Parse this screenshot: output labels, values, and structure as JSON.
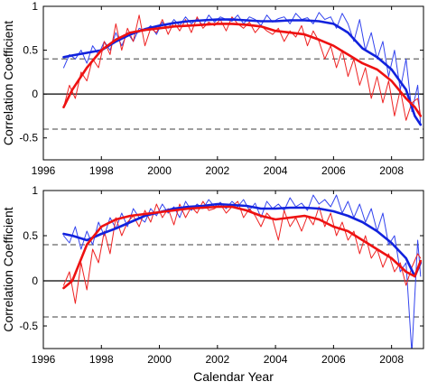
{
  "chart_data": [
    {
      "type": "line",
      "xlabel": "",
      "ylabel": "Correlation Coefficient",
      "xlim": [
        1996,
        2009.1
      ],
      "ylim": [
        -0.75,
        1.0
      ],
      "xticks": [
        1996,
        1998,
        2000,
        2002,
        2004,
        2006,
        2008
      ],
      "yticks": [
        -0.5,
        0,
        0.5,
        1
      ],
      "ytick_labels": [
        "-0.5",
        "0",
        "0.5",
        "1"
      ],
      "reference_lines": [
        {
          "y": 0.4,
          "style": "dashed",
          "color": "#666666"
        },
        {
          "y": 0,
          "style": "solid",
          "color": "#000000"
        },
        {
          "y": -0.4,
          "style": "dashed",
          "color": "#666666"
        }
      ],
      "series": [
        {
          "color": "#3344ee",
          "width": 1,
          "x": [
            1996.7,
            1996.9,
            1997.1,
            1997.3,
            1997.5,
            1997.7,
            1997.9,
            1998.1,
            1998.3,
            1998.5,
            1998.7,
            1998.9,
            1999.1,
            1999.3,
            1999.5,
            1999.7,
            1999.9,
            2000.1,
            2000.3,
            2000.5,
            2000.7,
            2000.9,
            2001.1,
            2001.3,
            2001.5,
            2001.7,
            2001.9,
            2002.1,
            2002.3,
            2002.5,
            2002.7,
            2002.9,
            2003.1,
            2003.3,
            2003.5,
            2003.7,
            2003.9,
            2004.1,
            2004.3,
            2004.5,
            2004.7,
            2004.9,
            2005.1,
            2005.3,
            2005.5,
            2005.7,
            2005.9,
            2006.1,
            2006.3,
            2006.5,
            2006.7,
            2006.9,
            2007.1,
            2007.3,
            2007.5,
            2007.7,
            2007.9,
            2008.1,
            2008.3,
            2008.5,
            2008.7,
            2008.9,
            2009.0
          ],
          "y": [
            0.3,
            0.45,
            0.4,
            0.5,
            0.35,
            0.55,
            0.45,
            0.6,
            0.5,
            0.7,
            0.55,
            0.7,
            0.6,
            0.75,
            0.72,
            0.78,
            0.68,
            0.82,
            0.75,
            0.85,
            0.78,
            0.88,
            0.8,
            0.86,
            0.78,
            0.9,
            0.82,
            0.88,
            0.85,
            0.83,
            0.9,
            0.8,
            0.88,
            0.85,
            0.78,
            0.9,
            0.82,
            0.86,
            0.88,
            0.8,
            0.92,
            0.85,
            0.87,
            0.8,
            0.93,
            0.85,
            0.88,
            0.75,
            0.92,
            0.8,
            0.6,
            0.85,
            0.5,
            0.7,
            0.4,
            0.6,
            0.2,
            0.5,
            0.05,
            0.4,
            -0.2,
            0.1,
            -0.35
          ]
        },
        {
          "color": "#ee2222",
          "width": 1,
          "x": [
            1996.7,
            1996.9,
            1997.1,
            1997.3,
            1997.5,
            1997.7,
            1997.9,
            1998.1,
            1998.3,
            1998.5,
            1998.7,
            1998.9,
            1999.1,
            1999.3,
            1999.5,
            1999.7,
            1999.9,
            2000.1,
            2000.3,
            2000.5,
            2000.7,
            2000.9,
            2001.1,
            2001.3,
            2001.5,
            2001.7,
            2001.9,
            2002.1,
            2002.3,
            2002.5,
            2002.7,
            2002.9,
            2003.1,
            2003.3,
            2003.5,
            2003.7,
            2003.9,
            2004.1,
            2004.3,
            2004.5,
            2004.7,
            2004.9,
            2005.1,
            2005.3,
            2005.5,
            2005.7,
            2005.9,
            2006.1,
            2006.3,
            2006.5,
            2006.7,
            2006.9,
            2007.1,
            2007.3,
            2007.5,
            2007.7,
            2007.9,
            2008.1,
            2008.3,
            2008.5,
            2008.7,
            2008.9,
            2009.0
          ],
          "y": [
            -0.15,
            0.1,
            -0.05,
            0.25,
            0.15,
            0.4,
            0.3,
            0.6,
            0.45,
            0.8,
            0.5,
            0.75,
            0.6,
            0.9,
            0.55,
            0.75,
            0.7,
            0.85,
            0.68,
            0.82,
            0.72,
            0.85,
            0.7,
            0.88,
            0.75,
            0.82,
            0.78,
            0.85,
            0.72,
            0.88,
            0.8,
            0.75,
            0.82,
            0.7,
            0.78,
            0.72,
            0.68,
            0.75,
            0.6,
            0.72,
            0.65,
            0.78,
            0.55,
            0.72,
            0.6,
            0.4,
            0.55,
            0.3,
            0.5,
            0.2,
            0.4,
            0.1,
            0.3,
            -0.05,
            0.2,
            -0.1,
            0.15,
            -0.25,
            0.05,
            -0.3,
            -0.1,
            -0.05,
            -0.25
          ]
        },
        {
          "color": "#1122dd",
          "width": 2.6,
          "x": [
            1996.7,
            1997.0,
            1997.5,
            1998.0,
            1998.5,
            1999.0,
            1999.5,
            2000.0,
            2000.5,
            2001.0,
            2001.5,
            2002.0,
            2002.5,
            2003.0,
            2003.5,
            2004.0,
            2004.5,
            2005.0,
            2005.5,
            2006.0,
            2006.5,
            2007.0,
            2007.5,
            2008.0,
            2008.5,
            2008.8,
            2009.0
          ],
          "y": [
            0.42,
            0.44,
            0.47,
            0.5,
            0.6,
            0.68,
            0.74,
            0.78,
            0.81,
            0.83,
            0.84,
            0.85,
            0.85,
            0.84,
            0.83,
            0.83,
            0.84,
            0.84,
            0.83,
            0.8,
            0.7,
            0.52,
            0.42,
            0.28,
            0.05,
            -0.25,
            -0.35
          ]
        },
        {
          "color": "#ee1111",
          "width": 2.6,
          "x": [
            1996.7,
            1997.0,
            1997.5,
            1998.0,
            1998.5,
            1999.0,
            1999.5,
            2000.0,
            2000.5,
            2001.0,
            2001.5,
            2002.0,
            2002.5,
            2003.0,
            2003.5,
            2004.0,
            2004.5,
            2005.0,
            2005.5,
            2006.0,
            2006.5,
            2007.0,
            2007.5,
            2008.0,
            2008.5,
            2008.8,
            2009.0
          ],
          "y": [
            -0.15,
            0.05,
            0.3,
            0.5,
            0.62,
            0.7,
            0.73,
            0.75,
            0.77,
            0.78,
            0.79,
            0.8,
            0.8,
            0.79,
            0.77,
            0.72,
            0.7,
            0.68,
            0.62,
            0.55,
            0.45,
            0.35,
            0.28,
            0.15,
            -0.05,
            -0.15,
            -0.25
          ]
        }
      ]
    },
    {
      "type": "line",
      "xlabel": "Calendar Year",
      "ylabel": "Correlation Coefficient",
      "xlim": [
        1996,
        2009.1
      ],
      "ylim": [
        -0.75,
        1.0
      ],
      "xticks": [
        1996,
        1998,
        2000,
        2002,
        2004,
        2006,
        2008
      ],
      "yticks": [
        -0.5,
        0,
        0.5,
        1
      ],
      "ytick_labels": [
        "-0.5",
        "0",
        "0.5",
        "1"
      ],
      "reference_lines": [
        {
          "y": 0.4,
          "style": "dashed",
          "color": "#666666"
        },
        {
          "y": 0,
          "style": "solid",
          "color": "#000000"
        },
        {
          "y": -0.4,
          "style": "dashed",
          "color": "#666666"
        }
      ],
      "series": [
        {
          "color": "#3344ee",
          "width": 1,
          "x": [
            1996.7,
            1996.9,
            1997.1,
            1997.3,
            1997.5,
            1997.7,
            1997.9,
            1998.1,
            1998.3,
            1998.5,
            1998.7,
            1998.9,
            1999.1,
            1999.3,
            1999.5,
            1999.7,
            1999.9,
            2000.1,
            2000.3,
            2000.5,
            2000.7,
            2000.9,
            2001.1,
            2001.3,
            2001.5,
            2001.7,
            2001.9,
            2002.1,
            2002.3,
            2002.5,
            2002.7,
            2002.9,
            2003.1,
            2003.3,
            2003.5,
            2003.7,
            2003.9,
            2004.1,
            2004.3,
            2004.5,
            2004.7,
            2004.9,
            2005.1,
            2005.3,
            2005.5,
            2005.7,
            2005.9,
            2006.1,
            2006.3,
            2006.5,
            2006.7,
            2006.9,
            2007.1,
            2007.3,
            2007.5,
            2007.7,
            2007.9,
            2008.1,
            2008.3,
            2008.5,
            2008.7,
            2008.9,
            2009.0
          ],
          "y": [
            0.5,
            0.42,
            0.6,
            0.35,
            0.55,
            0.4,
            0.65,
            0.5,
            0.7,
            0.58,
            0.75,
            0.6,
            0.8,
            0.7,
            0.65,
            0.8,
            0.72,
            0.85,
            0.75,
            0.82,
            0.7,
            0.88,
            0.78,
            0.85,
            0.8,
            0.9,
            0.82,
            0.87,
            0.8,
            0.88,
            0.82,
            0.9,
            0.78,
            0.86,
            0.7,
            0.88,
            0.8,
            0.85,
            0.78,
            0.92,
            0.82,
            0.86,
            0.78,
            0.95,
            0.85,
            0.9,
            0.82,
            0.95,
            0.75,
            0.88,
            0.7,
            0.85,
            0.65,
            0.8,
            0.55,
            0.75,
            0.4,
            0.5,
            0.1,
            0.2,
            -0.8,
            0.45,
            0.05
          ]
        },
        {
          "color": "#ee2222",
          "width": 1,
          "x": [
            1996.7,
            1996.9,
            1997.1,
            1997.3,
            1997.5,
            1997.7,
            1997.9,
            1998.1,
            1998.3,
            1998.5,
            1998.7,
            1998.9,
            1999.1,
            1999.3,
            1999.5,
            1999.7,
            1999.9,
            2000.1,
            2000.3,
            2000.5,
            2000.7,
            2000.9,
            2001.1,
            2001.3,
            2001.5,
            2001.7,
            2001.9,
            2002.1,
            2002.3,
            2002.5,
            2002.7,
            2002.9,
            2003.1,
            2003.3,
            2003.5,
            2003.7,
            2003.9,
            2004.1,
            2004.3,
            2004.5,
            2004.7,
            2004.9,
            2005.1,
            2005.3,
            2005.5,
            2005.7,
            2005.9,
            2006.1,
            2006.3,
            2006.5,
            2006.7,
            2006.9,
            2007.1,
            2007.3,
            2007.5,
            2007.7,
            2007.9,
            2008.1,
            2008.3,
            2008.5,
            2008.7,
            2008.9,
            2009.0
          ],
          "y": [
            -0.05,
            0.1,
            -0.25,
            0.2,
            -0.1,
            0.35,
            0.2,
            0.55,
            0.3,
            0.7,
            0.5,
            0.65,
            0.72,
            0.6,
            0.78,
            0.65,
            0.85,
            0.7,
            0.8,
            0.62,
            0.85,
            0.7,
            0.82,
            0.75,
            0.88,
            0.78,
            0.8,
            0.85,
            0.75,
            0.82,
            0.88,
            0.7,
            0.8,
            0.72,
            0.6,
            0.75,
            0.68,
            0.45,
            0.78,
            0.6,
            0.7,
            0.55,
            0.72,
            0.62,
            0.82,
            0.6,
            0.75,
            0.5,
            0.65,
            0.45,
            0.55,
            0.3,
            0.5,
            0.25,
            0.35,
            0.15,
            0.3,
            0.1,
            0.2,
            -0.05,
            0.15,
            0.3,
            0.25
          ]
        },
        {
          "color": "#1122dd",
          "width": 2.6,
          "x": [
            1996.7,
            1997.0,
            1997.5,
            1998.0,
            1998.5,
            1999.0,
            1999.5,
            2000.0,
            2000.5,
            2001.0,
            2001.5,
            2002.0,
            2002.5,
            2003.0,
            2003.5,
            2004.0,
            2004.5,
            2005.0,
            2005.5,
            2006.0,
            2006.5,
            2007.0,
            2007.5,
            2008.0,
            2008.5,
            2008.8,
            2009.0
          ],
          "y": [
            0.52,
            0.5,
            0.45,
            0.52,
            0.58,
            0.65,
            0.72,
            0.76,
            0.8,
            0.82,
            0.83,
            0.85,
            0.84,
            0.83,
            0.8,
            0.8,
            0.81,
            0.81,
            0.8,
            0.77,
            0.72,
            0.65,
            0.55,
            0.42,
            0.25,
            0.05,
            0.2
          ]
        },
        {
          "color": "#ee1111",
          "width": 2.6,
          "x": [
            1996.7,
            1997.0,
            1997.5,
            1998.0,
            1998.5,
            1999.0,
            1999.5,
            2000.0,
            2000.5,
            2001.0,
            2001.5,
            2002.0,
            2002.5,
            2003.0,
            2003.5,
            2004.0,
            2004.5,
            2005.0,
            2005.5,
            2006.0,
            2006.5,
            2007.0,
            2007.5,
            2008.0,
            2008.5,
            2008.8,
            2009.0
          ],
          "y": [
            -0.08,
            0.0,
            0.4,
            0.6,
            0.68,
            0.72,
            0.74,
            0.76,
            0.78,
            0.8,
            0.81,
            0.82,
            0.82,
            0.78,
            0.72,
            0.68,
            0.7,
            0.72,
            0.68,
            0.6,
            0.55,
            0.45,
            0.35,
            0.25,
            0.1,
            0.05,
            0.22
          ]
        }
      ]
    }
  ]
}
